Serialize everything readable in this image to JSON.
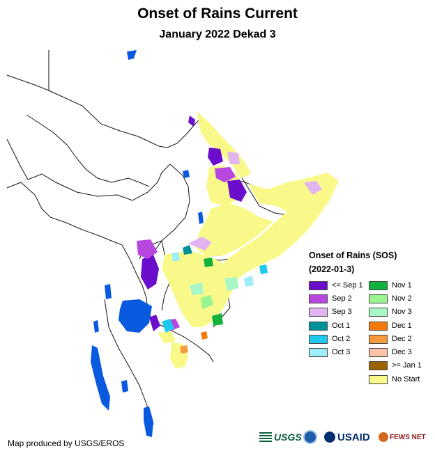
{
  "title": "Onset of Rains Current",
  "subtitle": "January 2022 Dekad 3",
  "legend": {
    "title_line1": "Onset of Rains (SOS)",
    "title_line2": "(2022-01-3)",
    "items": [
      {
        "label": "<= Sep 1",
        "color": "#6a0dcc"
      },
      {
        "label": "Sep 2",
        "color": "#b847e0"
      },
      {
        "label": "Sep 3",
        "color": "#e2b4f2"
      },
      {
        "label": "Oct 1",
        "color": "#00909a"
      },
      {
        "label": "Oct 2",
        "color": "#1ec8ef"
      },
      {
        "label": "Oct 3",
        "color": "#9eeefa"
      },
      {
        "label": "Nov 1",
        "color": "#14b23c"
      },
      {
        "label": "Nov 2",
        "color": "#99f58e"
      },
      {
        "label": "Nov 3",
        "color": "#a9f6c7"
      },
      {
        "label": "Dec 1",
        "color": "#f27b08"
      },
      {
        "label": "Dec 2",
        "color": "#f79a3c"
      },
      {
        "label": "Dec 3",
        "color": "#fbc2aa"
      },
      {
        "label": ">= Jan 1",
        "color": "#9a6200"
      },
      {
        "label": "No Start",
        "color": "#f9f98a"
      }
    ]
  },
  "credit": "Map produced by USGS/EROS",
  "logos": {
    "usgs": "USGS",
    "usaid": "USAID",
    "fews": "FEWS NET"
  }
}
